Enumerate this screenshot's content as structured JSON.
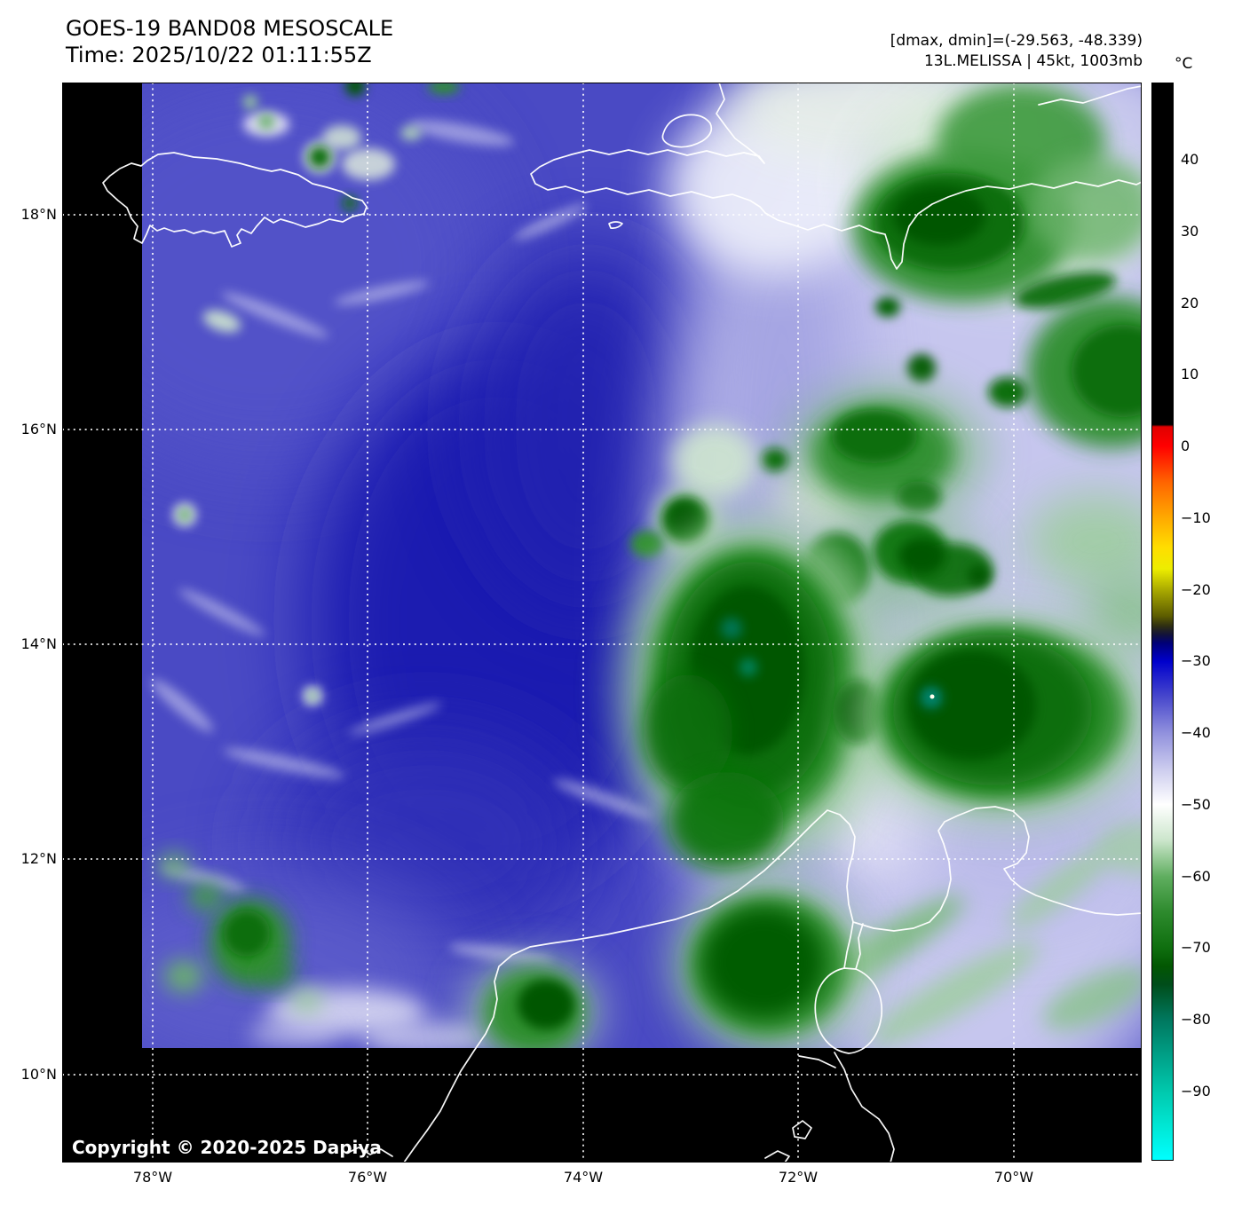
{
  "header": {
    "title": "GOES-19 BAND08 MESOSCALE",
    "time_line": "Time: 2025/10/22 01:11:55Z",
    "dmax_dmin": "[dmax, dmin]=(-29.563, -48.339)",
    "storm_line": "13L.MELISSA | 45kt, 1003mb"
  },
  "colorbar": {
    "unit": "°C",
    "ticks": [
      "40",
      "30",
      "20",
      "10",
      "0",
      "−10",
      "−20",
      "−30",
      "−40",
      "−50",
      "−60",
      "−70",
      "−80",
      "−90"
    ]
  },
  "axes": {
    "lat_ticks": [
      "18°N",
      "16°N",
      "14°N",
      "12°N",
      "10°N"
    ],
    "lon_ticks": [
      "78°W",
      "76°W",
      "74°W",
      "72°W",
      "70°W"
    ]
  },
  "map": {
    "copyright": "Copyright © 2020-2025 Dapiya",
    "features": [
      "Jamaica",
      "Hispaniola",
      "Gonave Island",
      "Colombia-Venezuela coast",
      "Guajira Peninsula",
      "Lake Maracaibo"
    ],
    "storm_name": "MELISSA"
  },
  "palette": {
    "deep_water_vapor_blue": "#1e1eb0",
    "mid_blue": "#4a4ac4",
    "lavender": "#c6c6ee",
    "cold_cloud_green": "#2f8f2f",
    "coldest_green": "#015701",
    "overshoot_teal": "#00795f",
    "cbar_bottom_cyan": "#00ffff",
    "coastline": "#ffffff",
    "background": "#000000"
  }
}
